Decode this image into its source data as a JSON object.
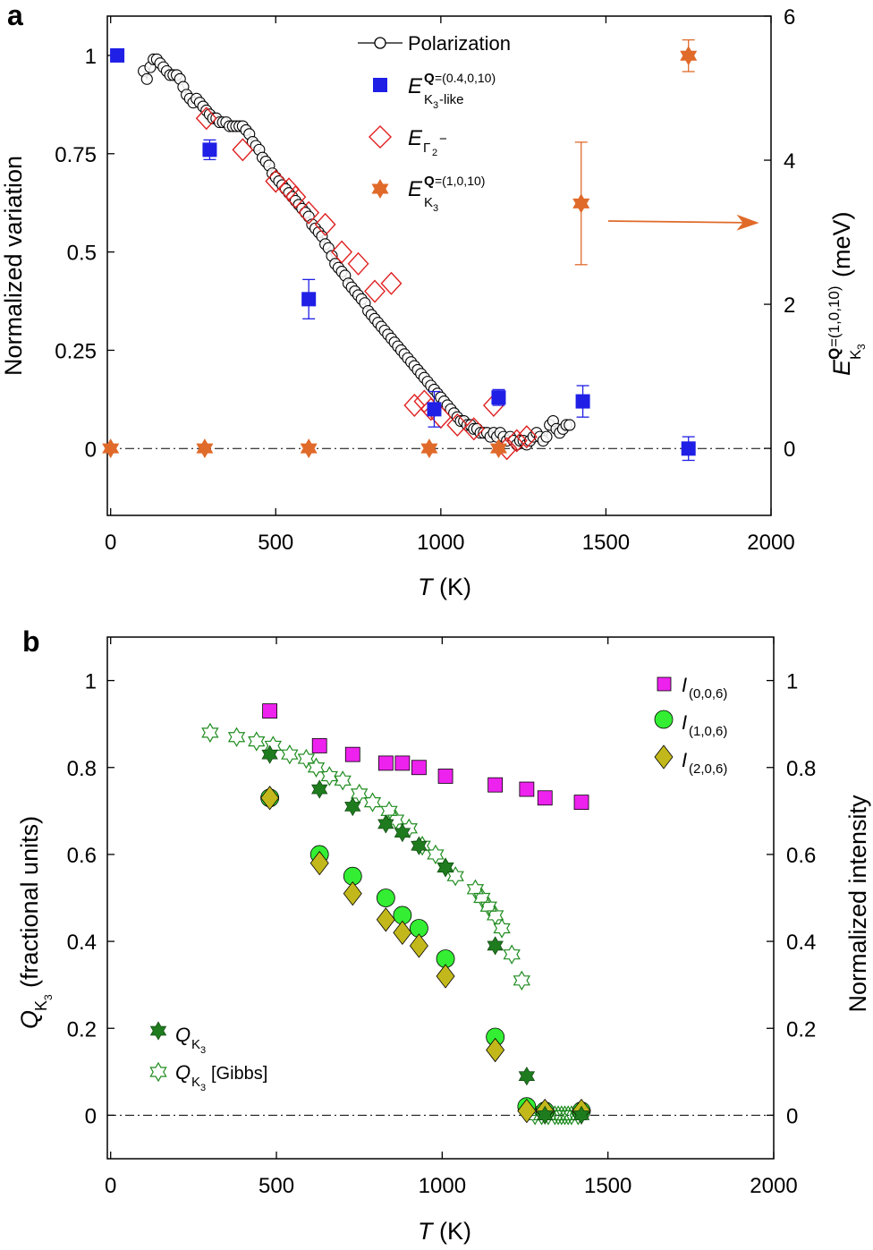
{
  "chart_data": [
    {
      "panel": "a",
      "type": "scatter",
      "xlabel": "T (K)",
      "xlabel_main": "T",
      "xlabel_unit": " (K)",
      "ylabel": "Normalized variation",
      "ylabel_right": "E K3 Q=(1,0,10) (meV)",
      "xlim": [
        -10,
        2000
      ],
      "ylim": [
        -0.17,
        1.1
      ],
      "ylim_right": [
        -0.93,
        6.0
      ],
      "xticks": [
        0,
        500,
        1000,
        1500,
        2000
      ],
      "xtick_labels": [
        "0",
        "500",
        "1000",
        "1500",
        "2000"
      ],
      "yticks": [
        0,
        0.25,
        0.5,
        0.75,
        1
      ],
      "ytick_labels": [
        "0",
        "0.25",
        "0.5",
        "0.75",
        "1"
      ],
      "yticks_right": [
        0,
        2,
        4,
        6
      ],
      "ytick_labels_right": [
        "0",
        "2",
        "4",
        "6"
      ],
      "reference_line": {
        "y": 0,
        "style": "dash-dot"
      },
      "annotation_arrow": {
        "direction": "right",
        "points_to": "right axis",
        "color": "#e06a2a"
      },
      "legend": [
        {
          "label": "Polarization",
          "marker": "open circle with line"
        },
        {
          "label": "E K3-like Q=(0.4,0,10)",
          "marker": "blue filled square"
        },
        {
          "label": "E Γ2−",
          "marker": "red open diamond"
        },
        {
          "label": "E K3 Q=(1,0,10)",
          "marker": "orange filled star"
        }
      ],
      "series": [
        {
          "name": "Polarization",
          "color": "#000000",
          "x": [
            100,
            110,
            120,
            130,
            140,
            150,
            160,
            170,
            180,
            190,
            200,
            210,
            220,
            230,
            240,
            250,
            260,
            270,
            280,
            290,
            300,
            310,
            320,
            330,
            340,
            350,
            360,
            370,
            380,
            390,
            400,
            410,
            420,
            430,
            440,
            450,
            460,
            470,
            480,
            490,
            500,
            510,
            520,
            530,
            540,
            550,
            560,
            570,
            580,
            590,
            600,
            610,
            620,
            630,
            640,
            650,
            660,
            670,
            680,
            690,
            700,
            710,
            720,
            730,
            740,
            750,
            760,
            770,
            780,
            790,
            800,
            810,
            820,
            830,
            840,
            850,
            860,
            870,
            880,
            890,
            900,
            910,
            920,
            930,
            940,
            950,
            960,
            970,
            980,
            990,
            1000,
            1010,
            1020,
            1030,
            1040,
            1050,
            1060,
            1070,
            1080,
            1090,
            1100,
            1110,
            1120,
            1130,
            1140,
            1150,
            1160,
            1170,
            1180,
            1190,
            1200,
            1210,
            1220,
            1230,
            1240,
            1250,
            1260,
            1270,
            1280,
            1290,
            1300,
            1310,
            1320,
            1330,
            1340,
            1350,
            1360,
            1370,
            1380,
            1390
          ],
          "y": [
            0.96,
            0.94,
            0.97,
            0.99,
            0.99,
            0.98,
            0.97,
            0.96,
            0.95,
            0.95,
            0.95,
            0.94,
            0.92,
            0.9,
            0.89,
            0.88,
            0.89,
            0.88,
            0.87,
            0.86,
            0.85,
            0.84,
            0.84,
            0.83,
            0.83,
            0.83,
            0.82,
            0.82,
            0.82,
            0.82,
            0.82,
            0.81,
            0.8,
            0.78,
            0.77,
            0.76,
            0.74,
            0.73,
            0.72,
            0.7,
            0.69,
            0.68,
            0.67,
            0.66,
            0.65,
            0.64,
            0.63,
            0.62,
            0.61,
            0.6,
            0.59,
            0.57,
            0.56,
            0.55,
            0.54,
            0.52,
            0.51,
            0.49,
            0.47,
            0.46,
            0.45,
            0.44,
            0.42,
            0.41,
            0.4,
            0.39,
            0.38,
            0.37,
            0.35,
            0.34,
            0.33,
            0.32,
            0.31,
            0.3,
            0.29,
            0.28,
            0.27,
            0.26,
            0.25,
            0.24,
            0.23,
            0.22,
            0.21,
            0.2,
            0.19,
            0.18,
            0.17,
            0.16,
            0.15,
            0.14,
            0.13,
            0.12,
            0.11,
            0.1,
            0.09,
            0.08,
            0.07,
            0.07,
            0.06,
            0.06,
            0.05,
            0.05,
            0.04,
            0.04,
            0.04,
            0.03,
            0.04,
            0.03,
            0.04,
            0.03,
            0.02,
            0.03,
            0.02,
            0.01,
            0.02,
            0.02,
            0.01,
            0.02,
            0.03,
            0.04,
            0.03,
            0.02,
            0.03,
            0.06,
            0.07,
            0.05,
            0.04,
            0.05,
            0.06,
            0.06
          ]
        },
        {
          "name": "E K3-like Q=(0.4,0,10)",
          "color": "#1f1fe6",
          "axis": "left",
          "x": [
            20,
            300,
            600,
            980,
            1175,
            1430,
            1750
          ],
          "y": [
            1.0,
            0.76,
            0.38,
            0.1,
            0.13,
            0.12,
            0.0
          ],
          "err": [
            0,
            0.025,
            0.05,
            0.045,
            0.02,
            0.04,
            0.03
          ]
        },
        {
          "name": "E Γ2−",
          "color": "#e02020",
          "axis": "left",
          "x": [
            290,
            400,
            500,
            540,
            560,
            600,
            650,
            700,
            750,
            800,
            850,
            920,
            950,
            970,
            1000,
            1050,
            1100,
            1160,
            1200,
            1230,
            1260
          ],
          "y": [
            0.84,
            0.76,
            0.68,
            0.66,
            0.64,
            0.6,
            0.57,
            0.5,
            0.47,
            0.4,
            0.42,
            0.11,
            0.12,
            0.1,
            0.08,
            0.06,
            0.05,
            0.11,
            0.0,
            0.02,
            0.03
          ]
        },
        {
          "name": "E K3 Q=(1,0,10)",
          "color": "#e06a2a",
          "axis": "right",
          "x": [
            0,
            285,
            600,
            965,
            1175,
            1425,
            1750
          ],
          "y": [
            0,
            0,
            0,
            0,
            0,
            3.4,
            5.45
          ],
          "err": [
            0,
            0,
            0,
            0,
            0,
            0.85,
            0.22
          ]
        }
      ]
    },
    {
      "panel": "b",
      "type": "scatter",
      "xlabel": "T (K)",
      "xlabel_main": "T",
      "xlabel_unit": " (K)",
      "ylabel": "Q K3 (fractional units)",
      "ylabel_right": "Normalized intensity",
      "xlim": [
        -10,
        2000
      ],
      "ylim": [
        -0.1,
        1.1
      ],
      "xticks": [
        0,
        500,
        1000,
        1500,
        2000
      ],
      "xtick_labels": [
        "0",
        "500",
        "1000",
        "1500",
        "2000"
      ],
      "yticks": [
        0,
        0.2,
        0.4,
        0.6,
        0.8,
        1
      ],
      "ytick_labels": [
        "0",
        "0.2",
        "0.4",
        "0.6",
        "0.8",
        "1"
      ],
      "ytick_labels_right": [
        "0",
        "0.2",
        "0.4",
        "0.6",
        "0.8",
        "1"
      ],
      "reference_line": {
        "y": 0,
        "style": "dash-dot"
      },
      "legend": [
        {
          "label": "I(0,0,6)",
          "marker": "magenta square"
        },
        {
          "label": "I(1,0,6)",
          "marker": "green circle"
        },
        {
          "label": "I(2,0,6)",
          "marker": "olive diamond"
        },
        {
          "label": "Q K3",
          "marker": "dark green filled star"
        },
        {
          "label": "Q K3 [Gibbs]",
          "marker": "green open star"
        }
      ],
      "series": [
        {
          "name": "I(0,0,6)",
          "color": "#ee22ee",
          "x": [
            480,
            630,
            730,
            830,
            880,
            930,
            1010,
            1160,
            1255,
            1310,
            1420
          ],
          "y": [
            0.93,
            0.85,
            0.83,
            0.81,
            0.81,
            0.8,
            0.78,
            0.76,
            0.75,
            0.73,
            0.72
          ]
        },
        {
          "name": "I(1,0,6)",
          "color": "#33ee33",
          "x": [
            480,
            630,
            730,
            830,
            880,
            930,
            1010,
            1160,
            1255,
            1310,
            1420
          ],
          "y": [
            0.73,
            0.6,
            0.55,
            0.5,
            0.46,
            0.43,
            0.36,
            0.18,
            0.02,
            0.01,
            0.01
          ]
        },
        {
          "name": "I(2,0,6)",
          "color": "#c2b81c",
          "x": [
            480,
            630,
            730,
            830,
            880,
            930,
            1010,
            1160,
            1255,
            1310,
            1420
          ],
          "y": [
            0.73,
            0.58,
            0.51,
            0.45,
            0.42,
            0.39,
            0.32,
            0.15,
            0.01,
            0.01,
            0.01
          ]
        },
        {
          "name": "Q K3",
          "color": "#1e7b1e",
          "x": [
            480,
            630,
            730,
            830,
            880,
            930,
            1010,
            1160,
            1255,
            1310,
            1420
          ],
          "y": [
            0.83,
            0.75,
            0.71,
            0.67,
            0.65,
            0.62,
            0.57,
            0.39,
            0.09,
            0.0,
            0.0
          ]
        },
        {
          "name": "Q K3 [Gibbs]",
          "color": "#1e8b1e",
          "x": [
            300,
            380,
            440,
            490,
            540,
            590,
            620,
            660,
            700,
            750,
            790,
            840,
            860,
            900,
            940,
            980,
            1010,
            1040,
            1100,
            1120,
            1140,
            1160,
            1180,
            1210,
            1240,
            1260,
            1280,
            1300,
            1320,
            1340,
            1350,
            1360,
            1370,
            1380,
            1390,
            1410
          ],
          "y": [
            0.88,
            0.87,
            0.86,
            0.85,
            0.83,
            0.82,
            0.8,
            0.78,
            0.77,
            0.74,
            0.72,
            0.7,
            0.68,
            0.66,
            0.62,
            0.6,
            0.57,
            0.55,
            0.52,
            0.5,
            0.48,
            0.46,
            0.43,
            0.37,
            0.31,
            0.01,
            0.0,
            0.0,
            0.0,
            0.0,
            0.0,
            0.0,
            0.0,
            0.0,
            0.0,
            0.0
          ]
        }
      ]
    }
  ],
  "labels": {
    "panel_a": "a",
    "panel_b": "b"
  }
}
